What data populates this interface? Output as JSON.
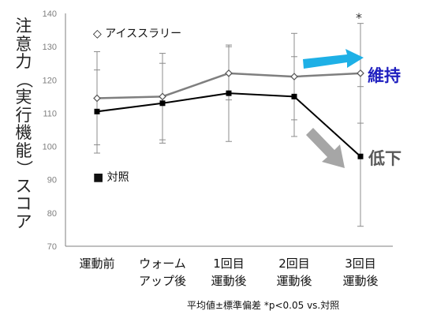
{
  "chart_data": {
    "type": "line",
    "ylabel": "注意力（実行機能）スコア",
    "ylim": [
      70,
      140
    ],
    "yticks": [
      70,
      80,
      90,
      100,
      110,
      120,
      130,
      140
    ],
    "categories": [
      "運動前",
      "ウォーム\nアップ後",
      "1回目\n運動後",
      "2回目\n運動後",
      "3回目\n運動後"
    ],
    "series": [
      {
        "name": "アイススラリー",
        "marker": "diamond-open",
        "color": "#7f7f7f",
        "values": [
          114.5,
          115,
          122,
          121,
          122
        ],
        "error": [
          14,
          13,
          8,
          13,
          15
        ]
      },
      {
        "name": "対照",
        "marker": "square-filled",
        "color": "#000000",
        "values": [
          110.5,
          113,
          116,
          115,
          97
        ],
        "error": [
          12.5,
          12,
          14.5,
          12,
          21
        ]
      }
    ],
    "legend": [
      {
        "label": "◇ アイススラリー"
      },
      {
        "label": "■ 対照"
      }
    ],
    "annotations": {
      "significance": "*",
      "maintain": "維持",
      "decline": "低下"
    },
    "footnote": "平均値±標準偏差 *p<0.05  vs.対照",
    "colors": {
      "maintain_arrow": "#1eb0e6",
      "decline_arrow": "#a6a6a6",
      "maintain_text": "#1f1fbf",
      "decline_text": "#595959"
    }
  }
}
